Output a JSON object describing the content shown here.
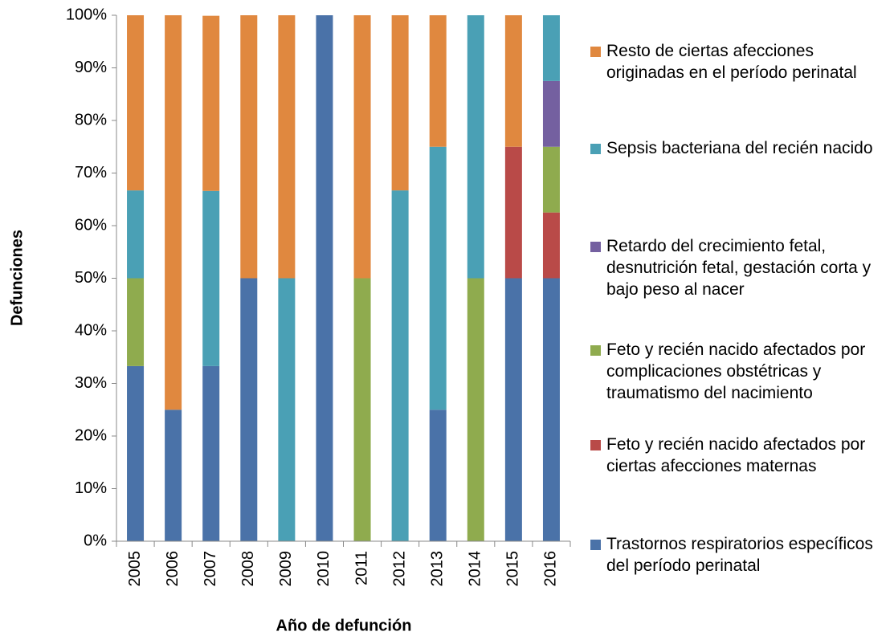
{
  "chart_data": {
    "type": "stacked_bar",
    "x_label": "Año de defunción",
    "y_label": "Defunciones",
    "categories": [
      "2005",
      "2006",
      "2007",
      "2008",
      "2009",
      "2010",
      "2011",
      "2012",
      "2013",
      "2014",
      "2015",
      "2016"
    ],
    "series": [
      {
        "name": "Trastornos respiratorios específicos del período perinatal",
        "color": "#4a72a8",
        "values": [
          33.3,
          25,
          33.3,
          50,
          0,
          100,
          0,
          0,
          25,
          0,
          50,
          50
        ]
      },
      {
        "name": "Feto y recién nacido afectados por ciertas afecciones maternas",
        "color": "#b94a48",
        "values": [
          0,
          0,
          0,
          0,
          0,
          0,
          0,
          0,
          0,
          0,
          25,
          12.5
        ]
      },
      {
        "name": "Feto y recién nacido afectados por complicaciones obstétricas y traumatismo del nacimiento",
        "color": "#8fab4e",
        "values": [
          16.7,
          0,
          0,
          0,
          0,
          0,
          50,
          0,
          0,
          50,
          0,
          12.5
        ]
      },
      {
        "name": "Retardo del crecimiento fetal, desnutrición fetal, gestación corta y bajo peso al nacer",
        "color": "#7460a0",
        "values": [
          0,
          0,
          0,
          0,
          0,
          0,
          0,
          0,
          0,
          0,
          0,
          12.5
        ]
      },
      {
        "name": "Sepsis bacteriana del recién nacido",
        "color": "#4aa0b5",
        "values": [
          16.7,
          0,
          33.3,
          0,
          50,
          0,
          0,
          66.7,
          50,
          50,
          0,
          12.5
        ]
      },
      {
        "name": "Resto de ciertas afecciones originadas en el período perinatal",
        "color": "#e0883f",
        "values": [
          33.3,
          75,
          33.3,
          50,
          50,
          0,
          50,
          33.3,
          25,
          0,
          25,
          0
        ]
      }
    ],
    "ylim": [
      0,
      100
    ],
    "yticks": [
      {
        "value": 0,
        "label": "0%"
      },
      {
        "value": 10,
        "label": "10%"
      },
      {
        "value": 20,
        "label": "20%"
      },
      {
        "value": 30,
        "label": "30%"
      },
      {
        "value": 40,
        "label": "40%"
      },
      {
        "value": 50,
        "label": "50%"
      },
      {
        "value": 60,
        "label": "60%"
      },
      {
        "value": 70,
        "label": "70%"
      },
      {
        "value": 80,
        "label": "80%"
      },
      {
        "value": 90,
        "label": "90%"
      },
      {
        "value": 100,
        "label": "100%"
      }
    ],
    "legend": "right"
  }
}
